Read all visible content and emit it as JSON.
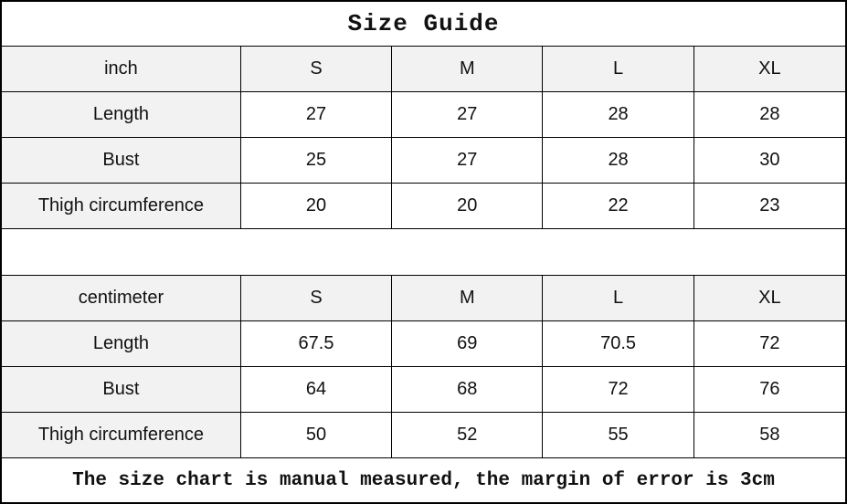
{
  "title": "Size Guide",
  "colors": {
    "border": "#000000",
    "shaded_cell_bg": "#f2f2f2",
    "background": "#ffffff",
    "text": "#111111"
  },
  "tables": [
    {
      "unit": "inch",
      "sizes": [
        "S",
        "M",
        "L",
        "XL"
      ],
      "rows": [
        {
          "label": "Length",
          "values": [
            "27",
            "27",
            "28",
            "28"
          ]
        },
        {
          "label": "Bust",
          "values": [
            "25",
            "27",
            "28",
            "30"
          ]
        },
        {
          "label": "Thigh circumference",
          "values": [
            "20",
            "20",
            "22",
            "23"
          ]
        }
      ]
    },
    {
      "unit": "centimeter",
      "sizes": [
        "S",
        "M",
        "L",
        "XL"
      ],
      "rows": [
        {
          "label": "Length",
          "values": [
            "67.5",
            "69",
            "70.5",
            "72"
          ]
        },
        {
          "label": "Bust",
          "values": [
            "64",
            "68",
            "72",
            "76"
          ]
        },
        {
          "label": "Thigh circumference",
          "values": [
            "50",
            "52",
            "55",
            "58"
          ]
        }
      ]
    }
  ],
  "footer": "The size chart is manual measured, the margin of error is 3cm"
}
